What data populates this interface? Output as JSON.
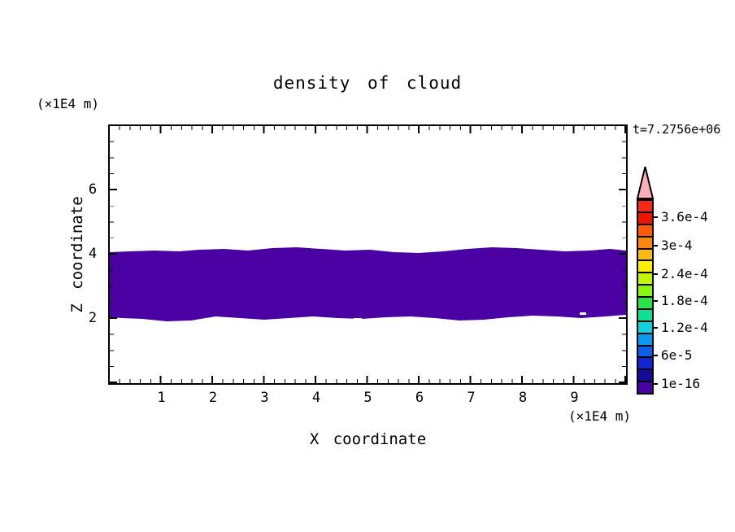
{
  "title": "density of cloud",
  "annotations": {
    "time_label": "t=7.2756e+06",
    "z_axis_unit": "(×1E4 m)",
    "x_axis_unit": "(×1E4 m)"
  },
  "axes": {
    "x": {
      "label": "X coordinate",
      "tick_labels": [
        "1",
        "2",
        "3",
        "4",
        "5",
        "6",
        "7",
        "8",
        "9"
      ],
      "range": [
        0,
        10
      ],
      "minor_step": 0.2
    },
    "z": {
      "label": "Z coordinate",
      "tick_labels": [
        "6",
        "4",
        "2"
      ],
      "range": [
        0,
        8
      ],
      "minor_step": 0.5
    }
  },
  "colorbar": {
    "labels": [
      "3.6e-4",
      "3e-4",
      "2.4e-4",
      "1.8e-4",
      "1.2e-4",
      "6e-5",
      "1e-16"
    ],
    "colors": [
      "#f52814",
      "#ef1400",
      "#ff5a05",
      "#ff870a",
      "#ffb90f",
      "#fcef00",
      "#c3f500",
      "#8cf50f",
      "#2be346",
      "#0fe091",
      "#0fd2dc",
      "#0a9bf0",
      "#0a5fe6",
      "#0f23d7",
      "#140a9b",
      "#4a00a3"
    ],
    "overflow_arrow_color": "#ffafb9"
  },
  "chart_data": {
    "type": "heatmap",
    "title": "density of cloud",
    "xlabel": "X coordinate (×1E4 m)",
    "ylabel": "Z coordinate (×1E4 m)",
    "xlim": [
      0,
      10
    ],
    "ylim": [
      0,
      8
    ],
    "x_major_ticks": [
      1,
      2,
      3,
      4,
      5,
      6,
      7,
      8,
      9
    ],
    "z_major_ticks": [
      2,
      4,
      6
    ],
    "time_annotation": "t=7.2756e+06",
    "legend_position": "right colorbar with overflow arrow",
    "grid": false,
    "colorbar_levels_labeled": [
      "1e-16",
      "6e-5",
      "1.2e-4",
      "1.8e-4",
      "2.4e-4",
      "3e-4",
      "3.6e-4"
    ],
    "regions": [
      {
        "name": "cloud density band",
        "x_extent": [
          0,
          10
        ],
        "z_extent": [
          2.0,
          4.1
        ],
        "color": "#4a00a3",
        "value_bin": "lowest contour tone level (≥ 1e-16)"
      }
    ]
  }
}
